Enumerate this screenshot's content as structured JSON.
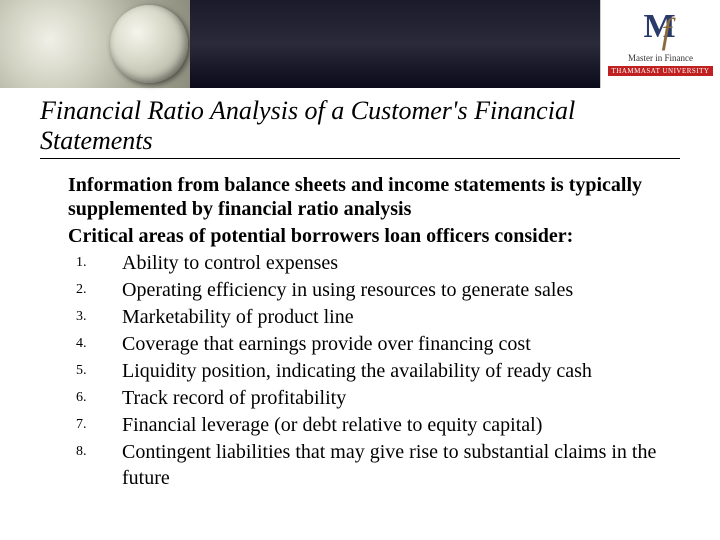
{
  "header": {
    "logo_line1": "Master in Finance",
    "logo_bar": "THAMMASAT UNIVERSITY"
  },
  "slide": {
    "title": "Financial Ratio Analysis of a Customer's Financial Statements",
    "intro1": "Information from balance sheets and income statements is typically supplemented by financial ratio analysis",
    "intro2": "Critical areas of potential borrowers loan officers consider:",
    "items": [
      "Ability to control expenses",
      "Operating efficiency in using resources to generate sales",
      "Marketability of product line",
      "Coverage that earnings provide over financing cost",
      "Liquidity position, indicating the availability of ready cash",
      "Track record of profitability",
      "Financial leverage (or debt relative to equity capital)",
      "Contingent liabilities that may give rise to substantial claims in the future"
    ],
    "nums": [
      "1.",
      "2.",
      "3.",
      "4.",
      "5.",
      "6.",
      "7.",
      "8."
    ]
  },
  "style": {
    "title_fontsize": 26,
    "body_fontsize": 20,
    "num_fontsize": 14,
    "text_color": "#000000",
    "background_color": "#ffffff"
  }
}
